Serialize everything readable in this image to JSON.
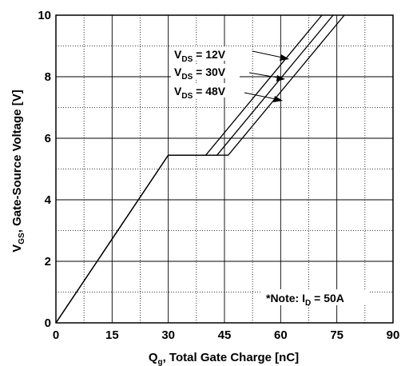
{
  "chart_data": {
    "type": "line",
    "xlabel": {
      "main": "Q",
      "sub": "g",
      "rest": ", Total Gate Charge [nC]"
    },
    "ylabel": {
      "main": "V",
      "sub": "GS",
      "rest": ", Gate-Source Voltage [V]"
    },
    "xlim": [
      0,
      90
    ],
    "ylim": [
      0,
      10
    ],
    "x_ticks": [
      "0",
      "15",
      "30",
      "45",
      "60",
      "75",
      "90"
    ],
    "y_ticks": [
      "0",
      "2",
      "4",
      "6",
      "8",
      "10"
    ],
    "grid": true,
    "series": [
      {
        "name": {
          "main": "V",
          "sub": "DS",
          "rest": " = 12V"
        },
        "x": [
          0,
          30,
          40,
          71
        ],
        "y": [
          0,
          5.45,
          5.45,
          10
        ]
      },
      {
        "name": {
          "main": "V",
          "sub": "DS",
          "rest": " = 30V"
        },
        "x": [
          0,
          30,
          43,
          74
        ],
        "y": [
          0,
          5.45,
          5.45,
          10
        ]
      },
      {
        "name": {
          "main": "V",
          "sub": "DS",
          "rest": " = 48V"
        },
        "x": [
          0,
          30,
          46,
          77
        ],
        "y": [
          0,
          5.45,
          5.45,
          10
        ]
      }
    ],
    "note": {
      "main": "*Note: I",
      "sub": "D",
      "rest": " = 50A"
    }
  }
}
